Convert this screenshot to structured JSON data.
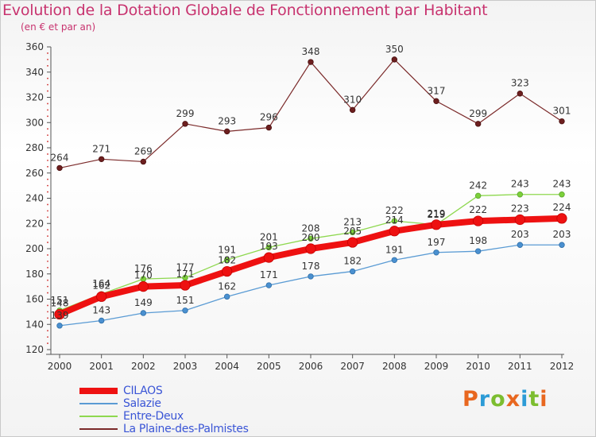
{
  "title": "Evolution de la Dotation Globale de Fonctionnement par Habitant",
  "subtitle": "(en € et par an)",
  "brand": {
    "text": "Proxiti",
    "colors": [
      "#e8671f",
      "#2c9bd6",
      "#7cbd2f",
      "#e8671f",
      "#2c9bd6",
      "#7cbd2f",
      "#e8671f"
    ]
  },
  "chart_data": {
    "type": "line",
    "title": "Evolution de la Dotation Globale de Fonctionnement par Habitant",
    "subtitle": "(en € et par an)",
    "xlabel": "",
    "ylabel": "",
    "ylim": [
      120,
      360
    ],
    "yticks": [
      120,
      140,
      160,
      180,
      200,
      220,
      240,
      260,
      280,
      300,
      320,
      340,
      360
    ],
    "x": [
      "2000",
      "2001",
      "2002",
      "2003",
      "2004",
      "2005",
      "2006",
      "2007",
      "2008",
      "2009",
      "2010",
      "2011",
      "2012"
    ],
    "grid": false,
    "legend_position": "bottom-left",
    "series": [
      {
        "name": "CILAOS",
        "color": "#ee1111",
        "values": [
          148,
          162,
          170,
          171,
          182,
          193,
          200,
          205,
          214,
          219,
          222,
          223,
          224
        ]
      },
      {
        "name": "Salazie",
        "color": "#5a9bd4",
        "values": [
          139,
          143,
          149,
          151,
          162,
          171,
          178,
          182,
          191,
          197,
          198,
          203,
          203
        ]
      },
      {
        "name": "Entre-Deux",
        "color": "#8ed84f",
        "values": [
          151,
          164,
          176,
          177,
          191,
          201,
          208,
          213,
          222,
          219,
          242,
          243,
          243
        ]
      },
      {
        "name": "La Plaine-des-Palmistes",
        "color": "#7b2a2a",
        "values": [
          264,
          271,
          269,
          299,
          293,
          296,
          348,
          310,
          350,
          317,
          299,
          323,
          301
        ]
      }
    ]
  }
}
